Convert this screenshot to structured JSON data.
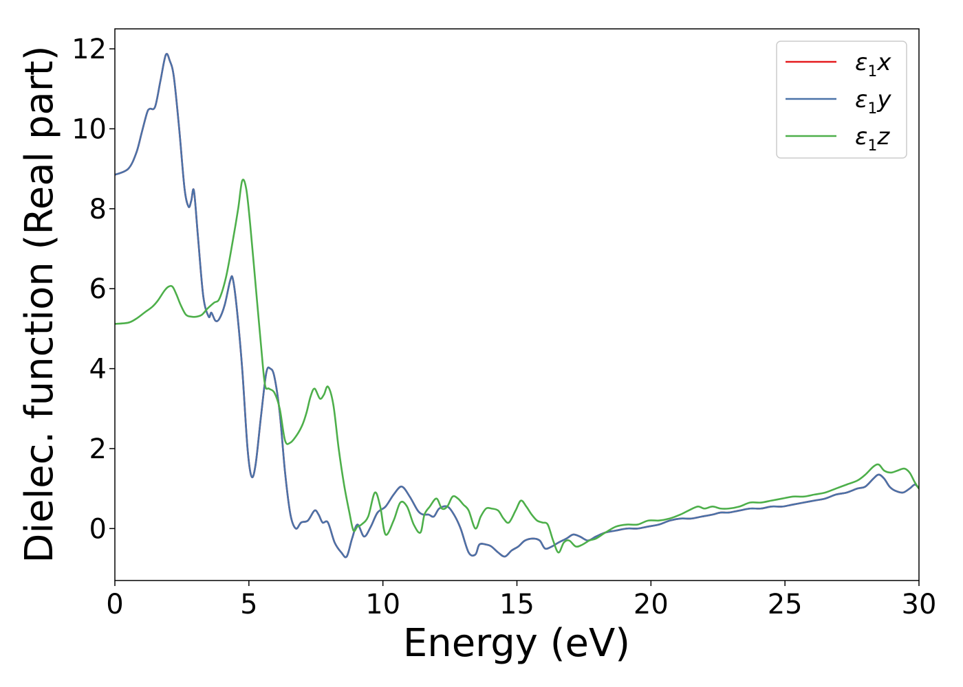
{
  "chart_data": {
    "type": "line",
    "title": "",
    "xlabel": "Energy (eV)",
    "ylabel": "Dielec. function (Real part)",
    "xlim": [
      0,
      30
    ],
    "ylim": [
      -1.3,
      12.5
    ],
    "xticks": [
      0,
      5,
      10,
      15,
      20,
      25,
      30
    ],
    "yticks": [
      0,
      2,
      4,
      6,
      8,
      10,
      12
    ],
    "grid": false,
    "legend_position": "top-right",
    "series": [
      {
        "name": "ε1x",
        "name_base": "ε",
        "name_sub": "1",
        "name_var": "x",
        "color": "#e41a1c",
        "x": [
          0,
          0.5,
          0.8,
          1.0,
          1.2,
          1.3,
          1.5,
          1.7,
          1.9,
          2.05,
          2.2,
          2.4,
          2.6,
          2.75,
          2.85,
          2.95,
          3.1,
          3.3,
          3.5,
          3.6,
          3.75,
          3.9,
          4.1,
          4.3,
          4.4,
          4.55,
          4.75,
          4.95,
          5.1,
          5.25,
          5.45,
          5.65,
          5.8,
          5.95,
          6.15,
          6.35,
          6.55,
          6.75,
          6.95,
          7.2,
          7.45,
          7.6,
          7.75,
          7.95,
          8.2,
          8.45,
          8.65,
          8.85,
          9.05,
          9.3,
          9.55,
          9.8,
          10.1,
          10.4,
          10.7,
          11.0,
          11.3,
          11.5,
          11.7,
          11.9,
          12.1,
          12.4,
          12.65,
          12.9,
          13.2,
          13.45,
          13.6,
          13.85,
          14.05,
          14.3,
          14.55,
          14.8,
          15.05,
          15.3,
          15.6,
          15.85,
          16.05,
          16.3,
          16.55,
          16.85,
          17.1,
          17.35,
          17.65,
          17.95,
          18.3,
          18.7,
          19.1,
          19.5,
          19.9,
          20.3,
          20.7,
          21.1,
          21.5,
          21.9,
          22.3,
          22.6,
          22.9,
          23.3,
          23.7,
          24.1,
          24.5,
          24.9,
          25.3,
          25.7,
          26.1,
          26.5,
          26.9,
          27.3,
          27.7,
          28.0,
          28.3,
          28.5,
          28.7,
          28.9,
          29.1,
          29.4,
          29.65,
          29.85,
          30.0
        ],
        "values": [
          8.85,
          9.0,
          9.4,
          9.9,
          10.4,
          10.5,
          10.55,
          11.2,
          11.85,
          11.7,
          11.3,
          10.0,
          8.5,
          8.05,
          8.2,
          8.45,
          7.3,
          5.8,
          5.3,
          5.4,
          5.2,
          5.25,
          5.6,
          6.2,
          6.25,
          5.5,
          4.0,
          2.0,
          1.3,
          1.6,
          2.8,
          3.9,
          4.0,
          3.8,
          2.9,
          1.4,
          0.35,
          0.0,
          0.15,
          0.2,
          0.45,
          0.35,
          0.15,
          0.15,
          -0.35,
          -0.6,
          -0.7,
          -0.25,
          0.1,
          -0.2,
          0.05,
          0.4,
          0.55,
          0.85,
          1.05,
          0.8,
          0.45,
          0.35,
          0.35,
          0.3,
          0.5,
          0.55,
          0.35,
          0.0,
          -0.6,
          -0.65,
          -0.4,
          -0.4,
          -0.45,
          -0.6,
          -0.7,
          -0.55,
          -0.45,
          -0.3,
          -0.25,
          -0.3,
          -0.5,
          -0.45,
          -0.35,
          -0.25,
          -0.15,
          -0.2,
          -0.3,
          -0.2,
          -0.1,
          -0.05,
          0.0,
          0.0,
          0.05,
          0.1,
          0.2,
          0.25,
          0.25,
          0.3,
          0.35,
          0.4,
          0.4,
          0.45,
          0.5,
          0.5,
          0.55,
          0.55,
          0.6,
          0.65,
          0.7,
          0.75,
          0.85,
          0.9,
          1.0,
          1.05,
          1.25,
          1.35,
          1.25,
          1.05,
          0.95,
          0.9,
          1.0,
          1.1,
          1.0
        ]
      },
      {
        "name": "ε1y",
        "name_base": "ε",
        "name_sub": "1",
        "name_var": "y",
        "color": "#4a72a8",
        "x": [
          0,
          0.5,
          0.8,
          1.0,
          1.2,
          1.3,
          1.5,
          1.7,
          1.9,
          2.05,
          2.2,
          2.4,
          2.6,
          2.75,
          2.85,
          2.95,
          3.1,
          3.3,
          3.5,
          3.6,
          3.75,
          3.9,
          4.1,
          4.3,
          4.4,
          4.55,
          4.75,
          4.95,
          5.1,
          5.25,
          5.45,
          5.65,
          5.8,
          5.95,
          6.15,
          6.35,
          6.55,
          6.75,
          6.95,
          7.2,
          7.45,
          7.6,
          7.75,
          7.95,
          8.2,
          8.45,
          8.65,
          8.85,
          9.05,
          9.3,
          9.55,
          9.8,
          10.1,
          10.4,
          10.7,
          11.0,
          11.3,
          11.5,
          11.7,
          11.9,
          12.1,
          12.4,
          12.65,
          12.9,
          13.2,
          13.45,
          13.6,
          13.85,
          14.05,
          14.3,
          14.55,
          14.8,
          15.05,
          15.3,
          15.6,
          15.85,
          16.05,
          16.3,
          16.55,
          16.85,
          17.1,
          17.35,
          17.65,
          17.95,
          18.3,
          18.7,
          19.1,
          19.5,
          19.9,
          20.3,
          20.7,
          21.1,
          21.5,
          21.9,
          22.3,
          22.6,
          22.9,
          23.3,
          23.7,
          24.1,
          24.5,
          24.9,
          25.3,
          25.7,
          26.1,
          26.5,
          26.9,
          27.3,
          27.7,
          28.0,
          28.3,
          28.5,
          28.7,
          28.9,
          29.1,
          29.4,
          29.65,
          29.85,
          30.0
        ],
        "values": [
          8.85,
          9.0,
          9.4,
          9.9,
          10.4,
          10.5,
          10.55,
          11.2,
          11.85,
          11.7,
          11.3,
          10.0,
          8.5,
          8.05,
          8.2,
          8.45,
          7.3,
          5.8,
          5.3,
          5.4,
          5.2,
          5.25,
          5.6,
          6.2,
          6.25,
          5.5,
          4.0,
          2.0,
          1.3,
          1.6,
          2.8,
          3.9,
          4.0,
          3.8,
          2.9,
          1.4,
          0.35,
          0.0,
          0.15,
          0.2,
          0.45,
          0.35,
          0.15,
          0.15,
          -0.35,
          -0.6,
          -0.7,
          -0.25,
          0.1,
          -0.2,
          0.05,
          0.4,
          0.55,
          0.85,
          1.05,
          0.8,
          0.45,
          0.35,
          0.35,
          0.3,
          0.5,
          0.55,
          0.35,
          0.0,
          -0.6,
          -0.65,
          -0.4,
          -0.4,
          -0.45,
          -0.6,
          -0.7,
          -0.55,
          -0.45,
          -0.3,
          -0.25,
          -0.3,
          -0.5,
          -0.45,
          -0.35,
          -0.25,
          -0.15,
          -0.2,
          -0.3,
          -0.2,
          -0.1,
          -0.05,
          0.0,
          0.0,
          0.05,
          0.1,
          0.2,
          0.25,
          0.25,
          0.3,
          0.35,
          0.4,
          0.4,
          0.45,
          0.5,
          0.5,
          0.55,
          0.55,
          0.6,
          0.65,
          0.7,
          0.75,
          0.85,
          0.9,
          1.0,
          1.05,
          1.25,
          1.35,
          1.25,
          1.05,
          0.95,
          0.9,
          1.0,
          1.1,
          1.0
        ]
      },
      {
        "name": "ε1z",
        "name_base": "ε",
        "name_sub": "1",
        "name_var": "z",
        "color": "#4daf4a",
        "x": [
          0,
          0.5,
          0.8,
          1.1,
          1.4,
          1.6,
          1.85,
          2.0,
          2.15,
          2.3,
          2.45,
          2.65,
          2.85,
          3.05,
          3.25,
          3.45,
          3.7,
          3.9,
          4.15,
          4.4,
          4.6,
          4.75,
          4.9,
          5.05,
          5.25,
          5.45,
          5.6,
          5.75,
          5.95,
          6.15,
          6.35,
          6.55,
          6.8,
          7.0,
          7.15,
          7.3,
          7.45,
          7.65,
          7.8,
          7.95,
          8.15,
          8.35,
          8.55,
          8.75,
          8.9,
          9.05,
          9.2,
          9.45,
          9.7,
          9.9,
          10.1,
          10.4,
          10.65,
          10.9,
          11.15,
          11.4,
          11.55,
          11.75,
          12.0,
          12.2,
          12.4,
          12.6,
          12.8,
          13.0,
          13.2,
          13.45,
          13.65,
          13.85,
          14.05,
          14.3,
          14.5,
          14.7,
          14.95,
          15.15,
          15.35,
          15.55,
          15.75,
          15.95,
          16.15,
          16.35,
          16.55,
          16.75,
          16.95,
          17.2,
          17.45,
          17.7,
          17.95,
          18.3,
          18.7,
          19.1,
          19.5,
          19.9,
          20.3,
          20.7,
          21.1,
          21.4,
          21.75,
          22.0,
          22.3,
          22.6,
          22.9,
          23.3,
          23.7,
          24.1,
          24.5,
          24.9,
          25.3,
          25.7,
          26.1,
          26.5,
          26.9,
          27.3,
          27.7,
          28.0,
          28.3,
          28.5,
          28.7,
          28.95,
          29.2,
          29.45,
          29.65,
          29.85,
          30.0
        ],
        "values": [
          5.12,
          5.15,
          5.25,
          5.4,
          5.55,
          5.7,
          5.95,
          6.05,
          6.05,
          5.85,
          5.6,
          5.35,
          5.3,
          5.3,
          5.35,
          5.5,
          5.65,
          5.75,
          6.3,
          7.2,
          8.0,
          8.7,
          8.5,
          7.6,
          6.1,
          4.6,
          3.6,
          3.5,
          3.4,
          3.0,
          2.2,
          2.15,
          2.35,
          2.6,
          2.9,
          3.3,
          3.5,
          3.25,
          3.35,
          3.55,
          3.1,
          2.0,
          1.1,
          0.4,
          -0.05,
          0.05,
          0.1,
          0.3,
          0.9,
          0.55,
          -0.15,
          0.2,
          0.65,
          0.55,
          0.1,
          -0.1,
          0.35,
          0.55,
          0.75,
          0.5,
          0.55,
          0.8,
          0.75,
          0.6,
          0.45,
          0.0,
          0.3,
          0.5,
          0.5,
          0.45,
          0.25,
          0.15,
          0.45,
          0.7,
          0.55,
          0.35,
          0.2,
          0.15,
          0.1,
          -0.3,
          -0.6,
          -0.35,
          -0.3,
          -0.45,
          -0.4,
          -0.3,
          -0.25,
          -0.1,
          0.05,
          0.1,
          0.1,
          0.2,
          0.2,
          0.25,
          0.35,
          0.45,
          0.55,
          0.5,
          0.55,
          0.5,
          0.5,
          0.55,
          0.65,
          0.65,
          0.7,
          0.75,
          0.8,
          0.8,
          0.85,
          0.9,
          1.0,
          1.1,
          1.2,
          1.35,
          1.55,
          1.6,
          1.45,
          1.4,
          1.45,
          1.5,
          1.4,
          1.15,
          1.0
        ]
      }
    ]
  }
}
